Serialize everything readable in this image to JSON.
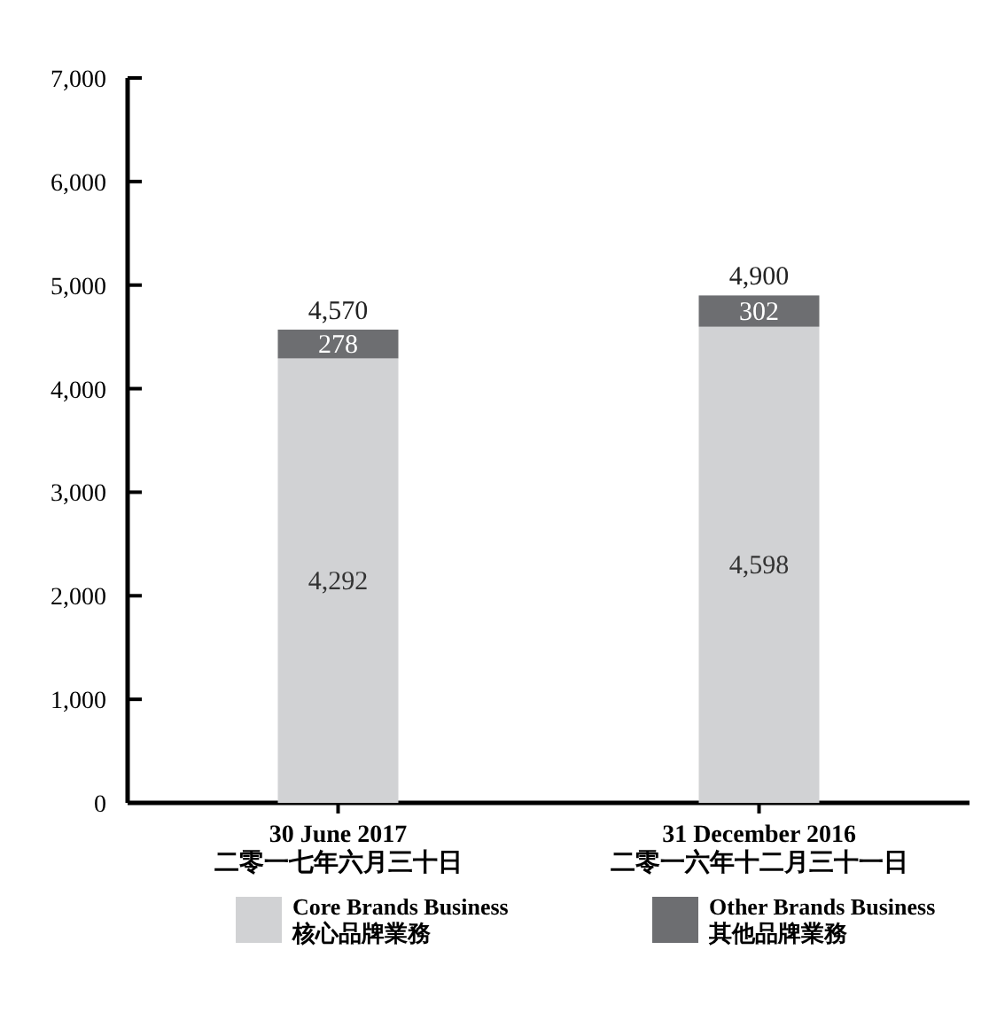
{
  "chart_data": {
    "type": "bar",
    "stacked": true,
    "categories": [
      "30 June 2017\n二零一七年六月三十日",
      "31 December 2016\n二零一六年十二月三十一日"
    ],
    "series": [
      {
        "name": "Core Brands Business\n核心品牌業務",
        "color": "#d1d2d4",
        "values": [
          4292,
          4598
        ],
        "value_labels": [
          "4,292",
          "4,598"
        ]
      },
      {
        "name": "Other Brands Business\n其他品牌業務",
        "color": "#6d6e71",
        "values": [
          278,
          302
        ],
        "value_labels": [
          "278",
          "302"
        ]
      }
    ],
    "totals": [
      "4,570",
      "4,900"
    ],
    "ylim": [
      0,
      7000
    ],
    "yticks": [
      0,
      {
        "value": 1000,
        "label": "1,000"
      },
      {
        "value": 2000,
        "label": "2,000"
      },
      {
        "value": 3000,
        "label": "3,000"
      },
      {
        "value": 4000,
        "label": "4,000"
      },
      {
        "value": 5000,
        "label": "5,000"
      },
      {
        "value": 6000,
        "label": "6,000"
      },
      {
        "value": 7000,
        "label": "7,000"
      }
    ],
    "grid": false,
    "legend": "bottom"
  }
}
